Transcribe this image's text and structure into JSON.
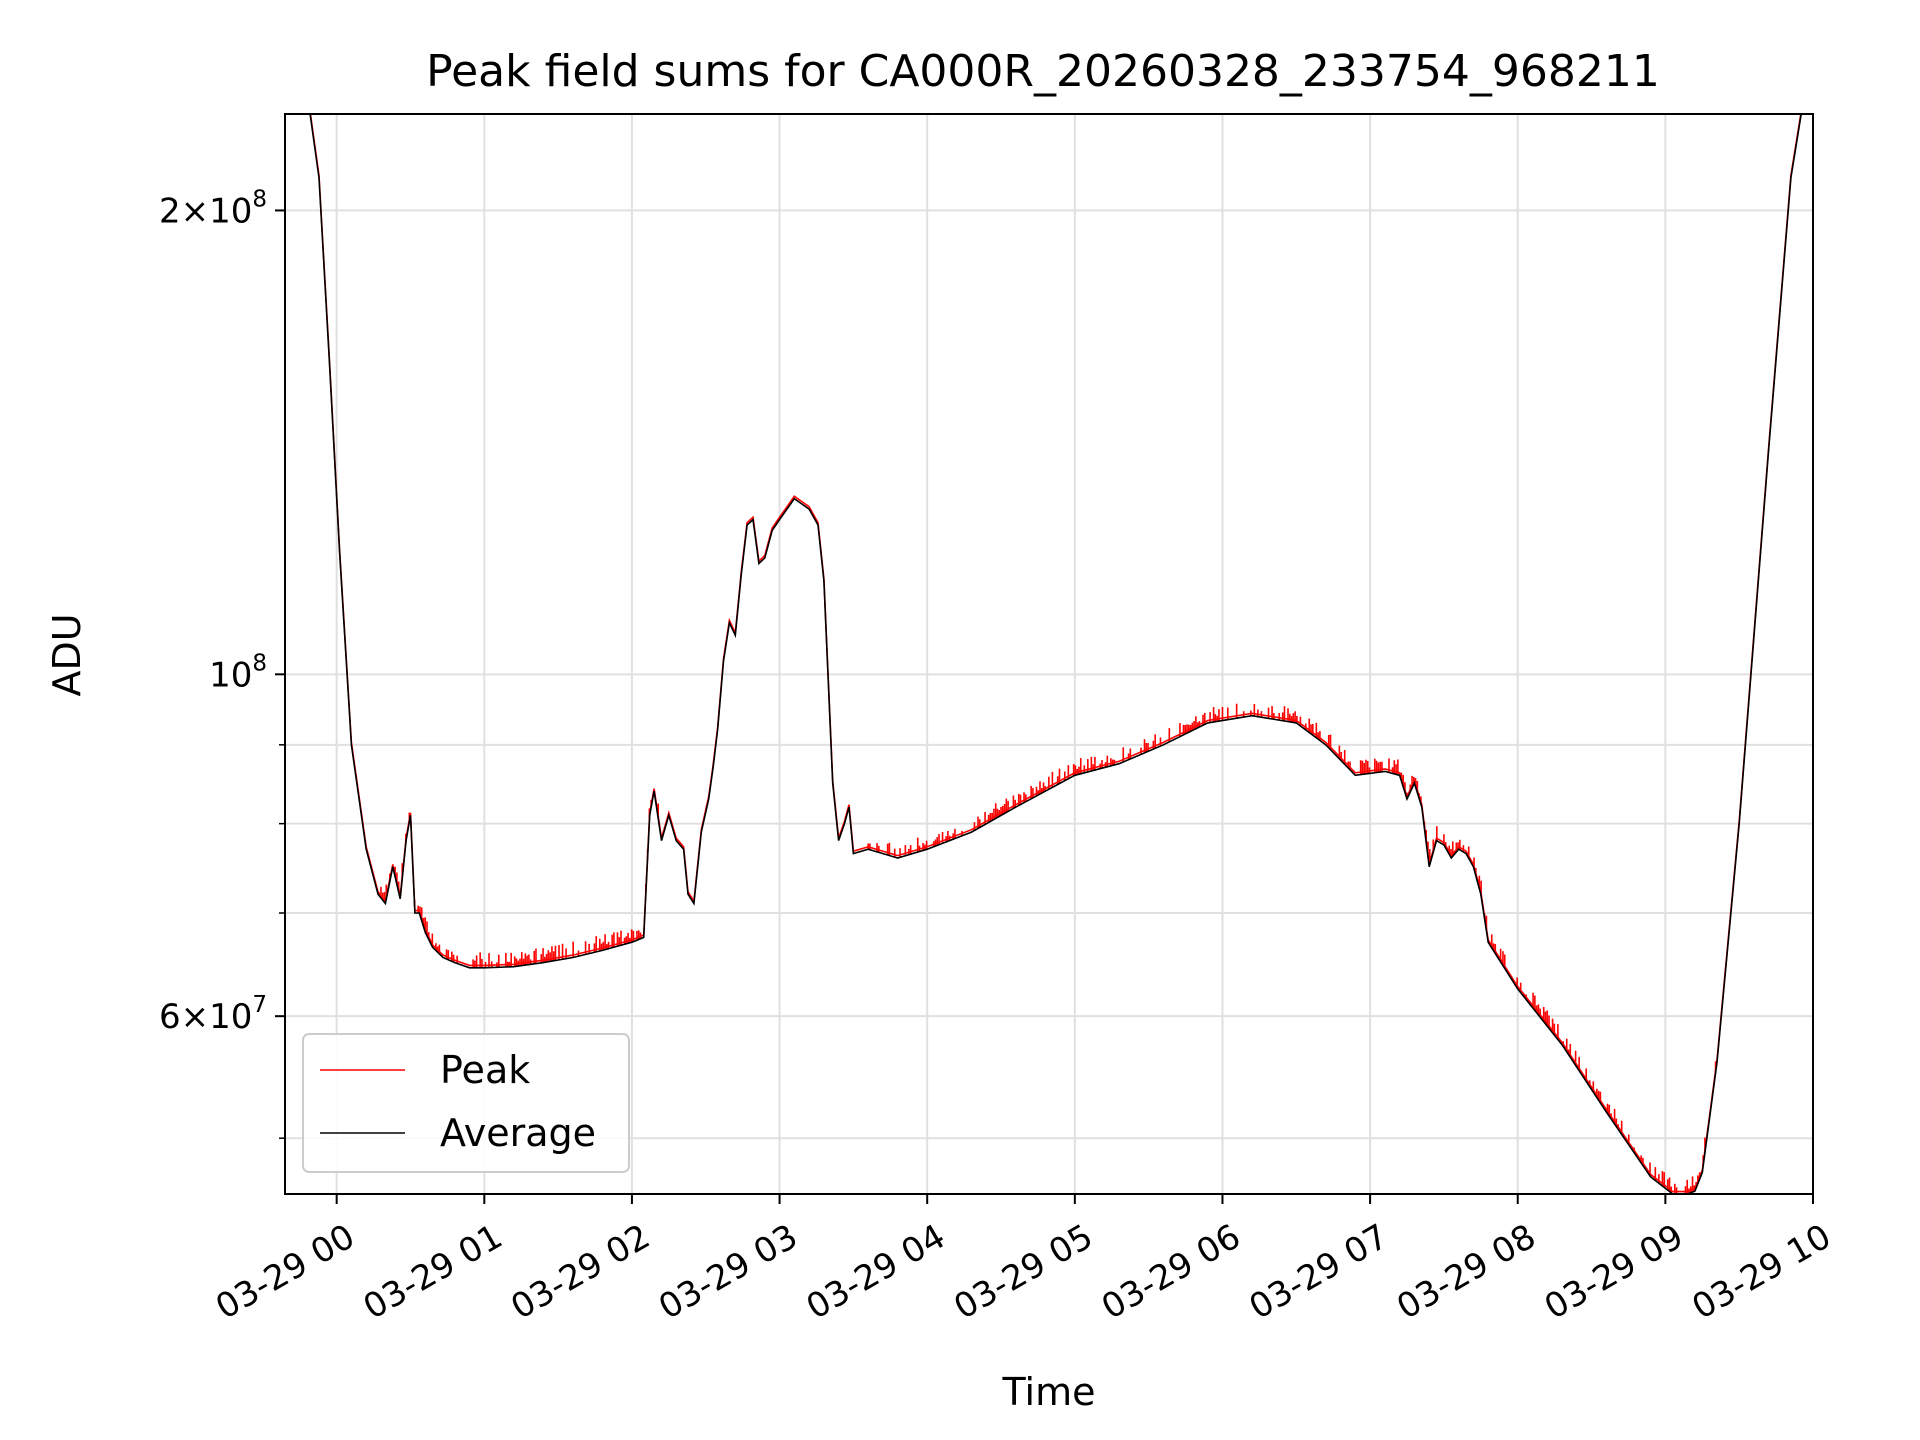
{
  "chart_data": {
    "type": "line",
    "title": "Peak field sums for CA000R_20260328_233754_968211",
    "xlabel": "Time",
    "ylabel": "ADU",
    "yscale": "log",
    "ylim": [
      46000000,
      231000000
    ],
    "xlim_hours": [
      -0.35,
      10.0
    ],
    "grid": true,
    "legend_position": "lower-left",
    "x_ticks": [
      {
        "hour": 0,
        "label": "03-29 00"
      },
      {
        "hour": 1,
        "label": "03-29 01"
      },
      {
        "hour": 2,
        "label": "03-29 02"
      },
      {
        "hour": 3,
        "label": "03-29 03"
      },
      {
        "hour": 4,
        "label": "03-29 04"
      },
      {
        "hour": 5,
        "label": "03-29 05"
      },
      {
        "hour": 6,
        "label": "03-29 06"
      },
      {
        "hour": 7,
        "label": "03-29 07"
      },
      {
        "hour": 8,
        "label": "03-29 08"
      },
      {
        "hour": 9,
        "label": "03-29 09"
      },
      {
        "hour": 10,
        "label": "03-29 10"
      }
    ],
    "y_major_ticks": [
      {
        "value": 200000000,
        "mantissa": "2",
        "exponent": "8"
      },
      {
        "value": 100000000,
        "mantissa": "",
        "exponent": "8"
      },
      {
        "value": 60000000,
        "mantissa": "6",
        "exponent": "7"
      }
    ],
    "y_minor_ticks": [
      50000000,
      70000000,
      80000000,
      90000000
    ],
    "x_unit": "hours since 03-29 00:00",
    "series": [
      {
        "name": "Peak",
        "color": "#ff0000",
        "spike_ranges": [
          [
            0.3,
            1.05
          ],
          [
            1.05,
            2.2
          ],
          [
            3.6,
            7.9
          ],
          [
            7.9,
            9.35
          ]
        ],
        "spike_factor": 1.012
      },
      {
        "name": "Average",
        "color": "#000000",
        "x": [
          -0.35,
          -0.18,
          -0.12,
          -0.05,
          0.02,
          0.1,
          0.2,
          0.28,
          0.33,
          0.38,
          0.43,
          0.47,
          0.5,
          0.53,
          0.56,
          0.6,
          0.65,
          0.72,
          0.8,
          0.9,
          1.0,
          1.2,
          1.4,
          1.6,
          1.8,
          2.0,
          2.08,
          2.12,
          2.15,
          2.2,
          2.25,
          2.3,
          2.35,
          2.38,
          2.42,
          2.47,
          2.52,
          2.55,
          2.58,
          2.62,
          2.66,
          2.7,
          2.74,
          2.78,
          2.82,
          2.86,
          2.9,
          2.95,
          3.0,
          3.05,
          3.1,
          3.15,
          3.2,
          3.26,
          3.3,
          3.36,
          3.4,
          3.44,
          3.47,
          3.5,
          3.6,
          3.8,
          4.0,
          4.3,
          4.6,
          5.0,
          5.3,
          5.6,
          5.9,
          6.2,
          6.5,
          6.7,
          6.9,
          7.1,
          7.2,
          7.25,
          7.3,
          7.35,
          7.4,
          7.45,
          7.5,
          7.55,
          7.6,
          7.65,
          7.7,
          7.75,
          7.8,
          8.0,
          8.3,
          8.6,
          8.9,
          9.05,
          9.15,
          9.2,
          9.25,
          9.35,
          9.5,
          9.7,
          9.85,
          9.92,
          10.0
        ],
        "y": [
          231000000,
          231000000,
          210000000,
          160000000,
          120000000,
          90000000,
          77000000,
          72000000,
          71000000,
          75000000,
          71500000,
          78000000,
          81000000,
          70000000,
          70000000,
          68000000,
          66500000,
          65500000,
          65000000,
          64500000,
          64500000,
          64600000,
          65000000,
          65500000,
          66200000,
          67000000,
          67500000,
          81000000,
          84000000,
          78000000,
          81000000,
          78000000,
          77000000,
          72000000,
          71000000,
          79000000,
          83000000,
          87000000,
          92000000,
          102000000,
          108000000,
          106000000,
          116000000,
          125000000,
          126000000,
          118000000,
          119000000,
          124000000,
          126000000,
          128000000,
          130000000,
          129000000,
          128000000,
          125000000,
          115000000,
          85000000,
          78000000,
          80000000,
          82000000,
          76500000,
          77000000,
          76000000,
          77000000,
          79000000,
          82000000,
          86000000,
          87500000,
          90000000,
          93000000,
          94000000,
          93000000,
          90000000,
          86000000,
          86500000,
          86000000,
          83000000,
          85000000,
          82000000,
          75000000,
          78000000,
          77500000,
          76000000,
          77000000,
          76500000,
          75000000,
          72000000,
          67000000,
          62500000,
          57500000,
          52000000,
          47200000,
          46000000,
          46000000,
          46200000,
          47500000,
          56000000,
          80000000,
          140000000,
          210000000,
          231000000,
          231000000
        ]
      }
    ]
  }
}
